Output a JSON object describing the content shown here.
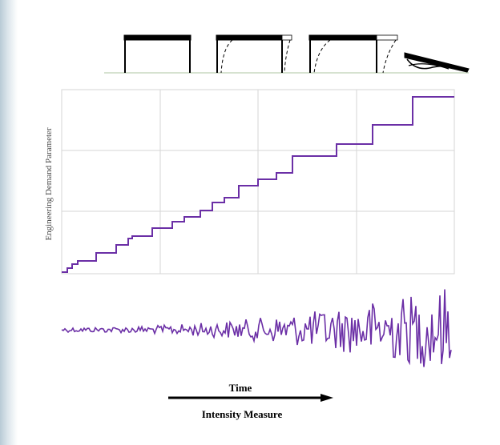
{
  "figure": {
    "y_axis_label": "Engineering Demand Parameter",
    "time_label": "Time",
    "intensity_label": "Intensity Measure"
  }
}
